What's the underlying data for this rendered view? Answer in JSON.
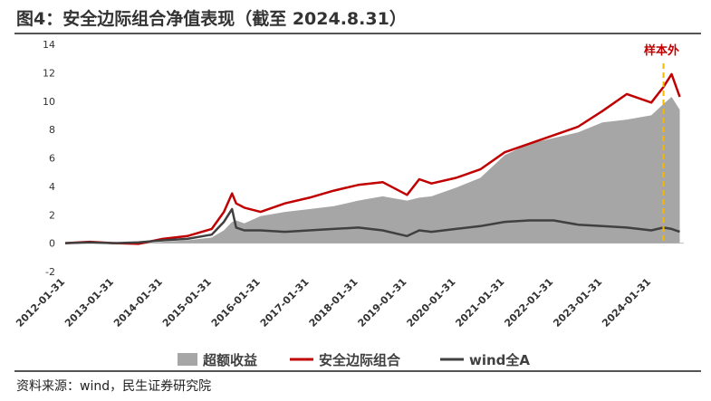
{
  "page": {
    "title": "图4：安全边际组合净值表现（截至 2024.8.31）",
    "source": "资料来源：wind，民生证券研究院"
  },
  "colors": {
    "excess": "#a6a6a6",
    "portfolio": "#c00000",
    "wind": "#404040",
    "marker": "#f5b800",
    "annotation": "#c00000"
  },
  "chart_data": {
    "type": "line",
    "title": "",
    "xlabel": "",
    "ylabel": "",
    "ylim": [
      -2,
      14
    ],
    "yticks": [
      -2,
      0,
      2,
      4,
      6,
      8,
      10,
      12,
      14
    ],
    "xticks": [
      "2012-01-31",
      "2013-01-31",
      "2014-01-31",
      "2015-01-31",
      "2016-01-31",
      "2017-01-31",
      "2018-01-31",
      "2019-01-31",
      "2020-01-31",
      "2021-01-31",
      "2022-01-31",
      "2023-01-31",
      "2024-01-31"
    ],
    "x": [
      "2012-01",
      "2012-07",
      "2013-01",
      "2013-07",
      "2014-01",
      "2014-07",
      "2015-01",
      "2015-04",
      "2015-06",
      "2015-07",
      "2015-09",
      "2016-01",
      "2016-07",
      "2017-01",
      "2017-07",
      "2018-01",
      "2018-07",
      "2019-01",
      "2019-04",
      "2019-07",
      "2020-01",
      "2020-07",
      "2021-01",
      "2021-07",
      "2022-01",
      "2022-07",
      "2023-01",
      "2023-07",
      "2024-01",
      "2024-04",
      "2024-06",
      "2024-08"
    ],
    "series": [
      {
        "name": "超额收益",
        "type": "area",
        "values": [
          0,
          0.05,
          0,
          -0.1,
          0.1,
          0.2,
          0.4,
          0.9,
          1.5,
          1.6,
          1.4,
          1.9,
          2.2,
          2.4,
          2.6,
          3.0,
          3.3,
          3.0,
          3.2,
          3.3,
          3.9,
          4.6,
          6.2,
          7.0,
          7.4,
          7.8,
          8.5,
          8.7,
          9.0,
          9.8,
          10.3,
          9.4
        ]
      },
      {
        "name": "安全边际组合",
        "type": "line",
        "values": [
          0,
          0.1,
          0,
          -0.05,
          0.3,
          0.5,
          1.0,
          2.2,
          3.5,
          2.8,
          2.5,
          2.2,
          2.8,
          3.2,
          3.7,
          4.1,
          4.3,
          3.4,
          4.5,
          4.2,
          4.6,
          5.2,
          6.4,
          7.0,
          7.6,
          8.2,
          9.3,
          10.5,
          9.9,
          11.0,
          11.9,
          10.3
        ]
      },
      {
        "name": "wind全A",
        "type": "line",
        "values": [
          0,
          0.05,
          0,
          0.05,
          0.2,
          0.3,
          0.6,
          1.5,
          2.4,
          1.1,
          0.9,
          0.9,
          0.8,
          0.9,
          1.0,
          1.1,
          0.9,
          0.5,
          0.9,
          0.8,
          1.0,
          1.2,
          1.5,
          1.6,
          1.6,
          1.3,
          1.2,
          1.1,
          0.9,
          1.1,
          1.0,
          0.8
        ]
      }
    ],
    "marker": {
      "label": "样本外",
      "x": "2024-04"
    },
    "grid": false,
    "legend": "bottom"
  }
}
